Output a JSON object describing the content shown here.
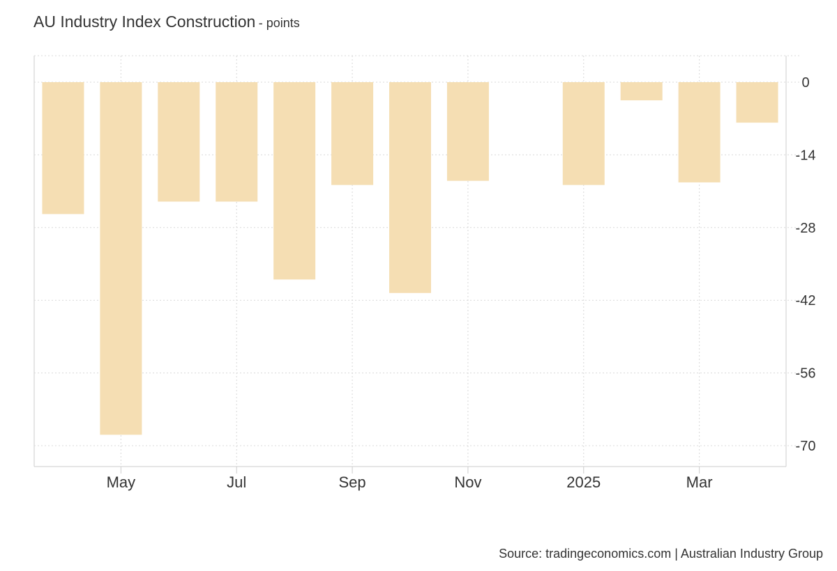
{
  "title": "AU Industry Index Construction",
  "subtitle": "- points",
  "source": "Source: tradingeconomics.com | Australian Industry Group",
  "colors": {
    "bar": "#f5deb3",
    "grid": "#d8d8d8",
    "axis": "#cccccc",
    "text": "#333333"
  },
  "chart_data": {
    "type": "bar",
    "categories": [
      "2024-04",
      "2024-05",
      "2024-06",
      "2024-07",
      "2024-08",
      "2024-09",
      "2024-10",
      "2024-11",
      "2024-12",
      "2025-01",
      "2025-02",
      "2025-03",
      "2025-04"
    ],
    "values": [
      -25.4,
      -67.9,
      -23.0,
      -23.0,
      -38.0,
      -19.8,
      -40.6,
      -19.0,
      null,
      -19.8,
      -3.5,
      -19.3,
      -7.8
    ],
    "ylim": [
      -74,
      5
    ],
    "yticks": [
      0,
      -14,
      -28,
      -42,
      -56,
      -70
    ],
    "ytick_labels": [
      "0",
      "-14",
      "-28",
      "-42",
      "-56",
      "-70"
    ],
    "xtick_labels": [
      {
        "label": "May",
        "category": "2024-05"
      },
      {
        "label": "Jul",
        "category": "2024-07"
      },
      {
        "label": "Sep",
        "category": "2024-09"
      },
      {
        "label": "Nov",
        "category": "2024-11"
      },
      {
        "label": "2025",
        "category": "2025-01"
      },
      {
        "label": "Mar",
        "category": "2025-03"
      }
    ],
    "grid": true,
    "y_axis_position": "right",
    "xlabel": "",
    "ylabel": ""
  }
}
